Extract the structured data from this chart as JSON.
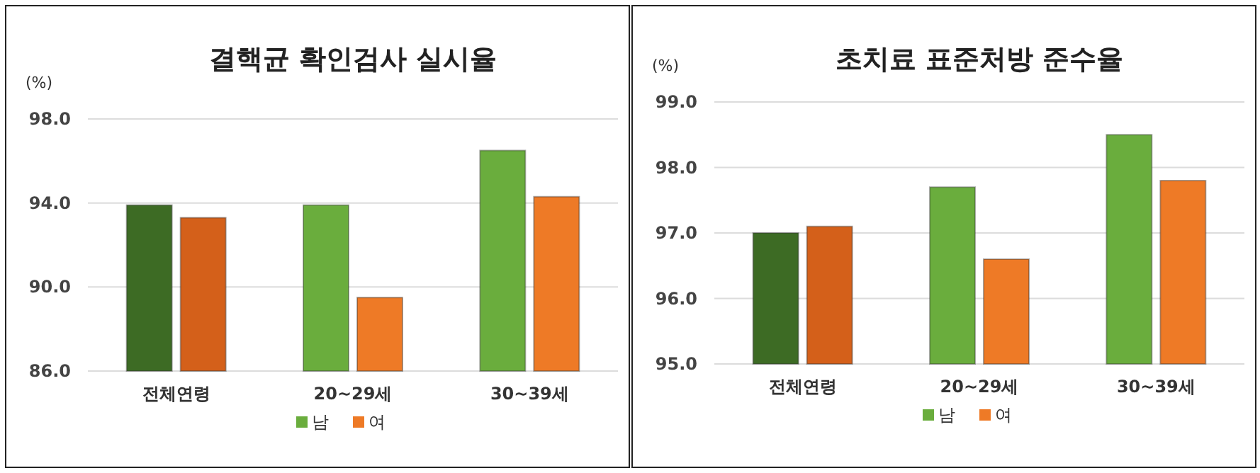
{
  "chart_data": [
    {
      "type": "bar",
      "title": "결핵균 확인검사 실시율",
      "ylabel": "(%)",
      "categories": [
        "전체연령",
        "20~29세",
        "30~39세"
      ],
      "series": [
        {
          "name": "남",
          "color": "#6aad3d",
          "colors": [
            "#3d6b24",
            "#6aad3d",
            "#6aad3d"
          ],
          "values": [
            93.9,
            93.9,
            96.5
          ]
        },
        {
          "name": "여",
          "color": "#ee7a26",
          "colors": [
            "#d4601a",
            "#ee7a26",
            "#ee7a26"
          ],
          "values": [
            93.3,
            89.5,
            94.3
          ]
        }
      ],
      "ylim": [
        86,
        98
      ],
      "yticks": [
        {
          "value": 86,
          "label": "86.0"
        },
        {
          "value": 90,
          "label": "90.0"
        },
        {
          "value": 94,
          "label": "94.0"
        },
        {
          "value": 98,
          "label": "98.0"
        }
      ],
      "grid": "y",
      "legend": "bottom"
    },
    {
      "type": "bar",
      "title": "초치료 표준처방 준수율",
      "ylabel": "(%)",
      "categories": [
        "전체연령",
        "20~29세",
        "30~39세"
      ],
      "series": [
        {
          "name": "남",
          "color": "#6aad3d",
          "colors": [
            "#3d6b24",
            "#6aad3d",
            "#6aad3d"
          ],
          "values": [
            97.0,
            97.7,
            98.5
          ]
        },
        {
          "name": "여",
          "color": "#ee7a26",
          "colors": [
            "#d4601a",
            "#ee7a26",
            "#ee7a26"
          ],
          "values": [
            97.1,
            96.6,
            97.8
          ]
        }
      ],
      "ylim": [
        95,
        99
      ],
      "yticks": [
        {
          "value": 95,
          "label": "95.0"
        },
        {
          "value": 96,
          "label": "96.0"
        },
        {
          "value": 97,
          "label": "97.0"
        },
        {
          "value": 98,
          "label": "98.0"
        },
        {
          "value": 99,
          "label": "99.0"
        }
      ],
      "grid": "y",
      "legend": "bottom"
    }
  ]
}
